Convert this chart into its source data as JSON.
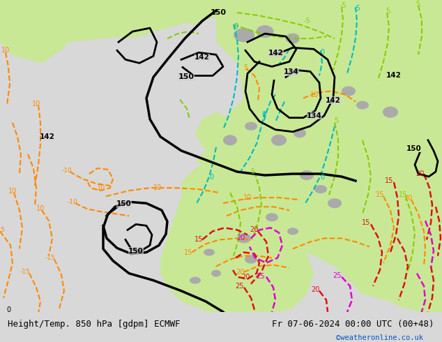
{
  "title_left": "Height/Temp. 850 hPa [gdpm] ECMWF",
  "title_right": "Fr 07-06-2024 00:00 UTC (00+48)",
  "copyright": "©weatheronline.co.uk",
  "bg_color": "#d8d8d8",
  "land_green": "#c8e896",
  "land_grey": "#aaaaaa",
  "ocean_grey": "#d0d0d0",
  "bottom_bar_color": "#e0e0e0",
  "col_black": "#000000",
  "col_orange": "#ff8800",
  "col_teal": "#00bbbb",
  "col_lgreen": "#88cc00",
  "col_red": "#dd1111",
  "col_magenta": "#dd00cc",
  "col_blue": "#0055cc",
  "font_size_title": 9,
  "figsize": [
    6.34,
    4.9
  ],
  "dpi": 100
}
